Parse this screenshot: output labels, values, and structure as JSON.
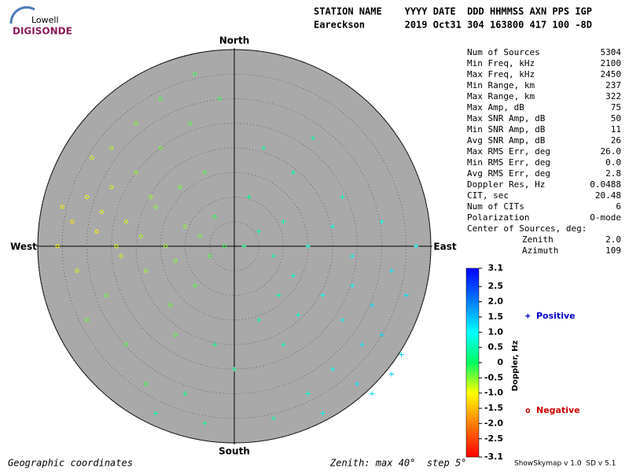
{
  "header": {
    "logo_top": "Lowell",
    "logo_bottom": "DIGISONDE",
    "line1": "STATION NAME    YYYY DATE  DDD HHMMSS AXN PPS IGP",
    "line2": "Eareckson       2019 Oct31 304 163800 417 100 -8D"
  },
  "stats": [
    {
      "label": "Num of Sources",
      "value": "5304"
    },
    {
      "label": "Min Freq, kHz",
      "value": "2100"
    },
    {
      "label": "Max Freq, kHz",
      "value": "2450"
    },
    {
      "label": "Min Range, km",
      "value": "237"
    },
    {
      "label": "Max Range, km",
      "value": "322"
    },
    {
      "label": "Max Amp, dB",
      "value": "75"
    },
    {
      "label": "Max SNR Amp, dB",
      "value": "50"
    },
    {
      "label": "Min SNR Amp, dB",
      "value": "11"
    },
    {
      "label": "Avg SNR Amp, dB",
      "value": "26"
    },
    {
      "label": "Max RMS Err, deg",
      "value": "26.0"
    },
    {
      "label": "Min RMS Err, deg",
      "value": "0.0"
    },
    {
      "label": "Avg RMS Err, deg",
      "value": "2.8"
    },
    {
      "label": "Doppler Res, Hz",
      "value": "0.0488"
    },
    {
      "label": "CIT, sec",
      "value": "20.48"
    },
    {
      "label": "Num of CITs",
      "value": "6"
    },
    {
      "label": "Polarization",
      "value": "O-mode"
    }
  ],
  "center": {
    "title": "Center of Sources, deg:",
    "rows": [
      {
        "label": "Zenith",
        "value": "2.0"
      },
      {
        "label": "Azimuth",
        "value": "109"
      }
    ]
  },
  "footer": {
    "left": "Geographic coordinates",
    "middle": "Zenith: max 40°  step 5°",
    "right": "ShowSkymap v 1.0  SD v 5.1"
  },
  "chart_data": {
    "type": "skymap",
    "directions": {
      "north": "North",
      "south": "South",
      "west": "West",
      "east": "East"
    },
    "rlim": [
      0,
      40
    ],
    "rticks": [
      5,
      10,
      15,
      20,
      25,
      30,
      35,
      40
    ],
    "colorbar_label": "Doppler, Hz",
    "zlim": [
      -3.1,
      3.1
    ],
    "zticks": [
      3.1,
      2.5,
      {
        "value": 2,
        "label": "2.0"
      },
      1.5,
      {
        "value": 1,
        "label": "1.0"
      },
      0.5,
      0,
      -0.5,
      {
        "value": -1,
        "label": "-1.0"
      },
      -1.5,
      {
        "value": -2,
        "label": "-2.0"
      },
      -2.5,
      -3.1
    ],
    "series": [
      {
        "name": "Positive",
        "marker": "+",
        "color": "#0000cc",
        "x": [
          2,
          5,
          8,
          10,
          12,
          15,
          18,
          20,
          22,
          24,
          26,
          28,
          30,
          32,
          34,
          25,
          20,
          15,
          10,
          5,
          0,
          8,
          18,
          28,
          35,
          12,
          6,
          16,
          3,
          22,
          -4,
          -10,
          -16,
          -6,
          30,
          37,
          13,
          24,
          9,
          32
        ],
        "y": [
          0,
          3,
          -2,
          5,
          -6,
          0,
          -10,
          4,
          -15,
          -8,
          -20,
          -12,
          -18,
          -5,
          -22,
          -28,
          -25,
          -30,
          -20,
          -15,
          -25,
          -35,
          -34,
          -30,
          -10,
          15,
          20,
          22,
          10,
          10,
          -20,
          -30,
          -34,
          -36,
          5,
          0,
          -14,
          -2,
          -10,
          -26
        ],
        "doppler": [
          0.2,
          0.4,
          0.5,
          0.5,
          0.7,
          0.8,
          0.9,
          0.8,
          1.0,
          1.0,
          1.2,
          1.2,
          1.3,
          1.1,
          1.4,
          1.2,
          1.0,
          0.8,
          0.6,
          0.4,
          0.3,
          0.5,
          0.9,
          1.3,
          1.2,
          0.4,
          0.3,
          0.5,
          0.2,
          0.7,
          0.2,
          0.3,
          0.4,
          0.3,
          0.9,
          1.0,
          0.7,
          0.9,
          0.5,
          1.4
        ]
      },
      {
        "name": "Negative",
        "marker": "o",
        "color": "#cc0000",
        "x": [
          -35,
          -33,
          -30,
          -28,
          -27,
          -25,
          -24,
          -22,
          -20,
          -19,
          -18,
          -16,
          -15,
          -14,
          -12,
          -11,
          -10,
          -9,
          -8,
          -7,
          -6,
          -5,
          -4,
          -3,
          -2,
          -26,
          -22,
          -30,
          -18,
          -12,
          -20,
          -25,
          -15,
          -8,
          -32,
          -36,
          -29,
          -13,
          -23,
          -17
        ],
        "y": [
          8,
          5,
          10,
          3,
          7,
          12,
          0,
          5,
          15,
          2,
          -5,
          8,
          20,
          0,
          -3,
          12,
          4,
          25,
          -8,
          2,
          15,
          -2,
          6,
          30,
          0,
          -10,
          -20,
          -15,
          -28,
          -18,
          25,
          20,
          30,
          35,
          -5,
          0,
          18,
          -12,
          -2,
          10
        ],
        "doppler": [
          -1.1,
          -1.2,
          -1.0,
          -1.1,
          -0.9,
          -0.8,
          -0.9,
          -0.8,
          -0.6,
          -0.7,
          -0.6,
          -0.5,
          -0.4,
          -0.6,
          -0.5,
          -0.4,
          -0.5,
          -0.3,
          -0.3,
          -0.4,
          -0.3,
          -0.3,
          -0.2,
          -0.2,
          -0.2,
          -0.4,
          -0.3,
          -0.4,
          -0.2,
          -0.3,
          -0.5,
          -0.7,
          -0.3,
          -0.2,
          -0.8,
          -1.0,
          -0.8,
          -0.4,
          -0.8,
          -0.6
        ]
      }
    ]
  }
}
